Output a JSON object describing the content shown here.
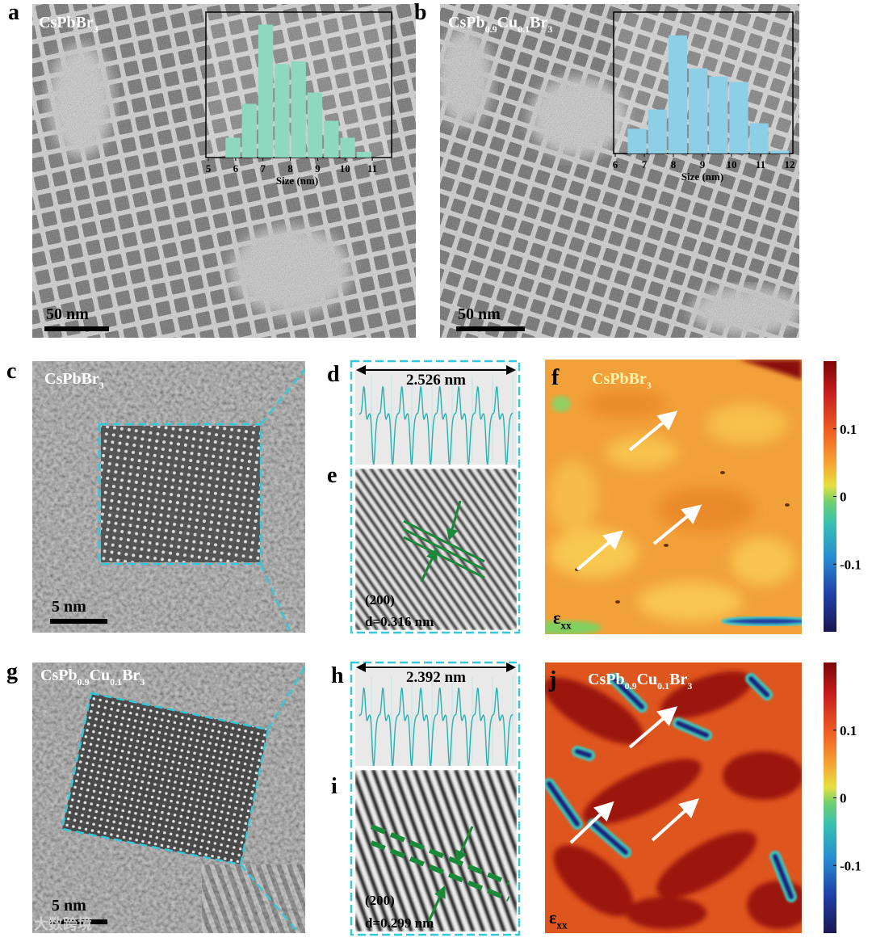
{
  "panels": {
    "a": {
      "label": "a",
      "name": [
        {
          "text": "CsPbBr"
        },
        {
          "text": "3",
          "sub": true
        }
      ],
      "scale_bar": "50 nm",
      "histogram": {
        "type": "bar",
        "bins": [
          5.6,
          6.2,
          6.8,
          7.4,
          8.0,
          8.6,
          9.2,
          9.8,
          10.4,
          11.0
        ],
        "values": [
          7,
          19,
          47,
          33,
          34,
          23,
          13,
          7,
          2
        ],
        "color": "#8ed8bf",
        "xlim": [
          5,
          11.5
        ],
        "ylim": [
          0,
          50
        ],
        "xticks": [
          5,
          6,
          7,
          8,
          9,
          10,
          11
        ],
        "xlabel": "Size (nm)"
      }
    },
    "b": {
      "label": "b",
      "name": [
        {
          "text": "CsPb"
        },
        {
          "text": "0.9",
          "sub": true
        },
        {
          "text": "Cu"
        },
        {
          "text": "0.1",
          "sub": true
        },
        {
          "text": "Br"
        },
        {
          "text": "3",
          "sub": true
        }
      ],
      "scale_bar": "50 nm",
      "histogram": {
        "type": "bar",
        "bins": [
          6.4,
          7.1,
          7.8,
          8.5,
          9.2,
          9.9,
          10.6,
          11.3,
          12.0
        ],
        "values": [
          9,
          16,
          43,
          31,
          28,
          26,
          11,
          1
        ],
        "color": "#8ccfe6",
        "xlim": [
          6,
          12
        ],
        "ylim": [
          0,
          50
        ],
        "xticks": [
          6,
          7,
          8,
          9,
          10,
          11,
          12
        ],
        "xlabel": "Size (nm)"
      }
    },
    "c": {
      "label": "c",
      "name": [
        {
          "text": "CsPbBr"
        },
        {
          "text": "3",
          "sub": true
        }
      ],
      "scale_bar": "5 nm"
    },
    "d": {
      "label": "d",
      "distance": "2.526 nm"
    },
    "e": {
      "label": "e",
      "plane": "(200)",
      "spacing": "d=0.316 nm"
    },
    "f": {
      "label": "f",
      "name": [
        {
          "text": "CsPbBr"
        },
        {
          "text": "3",
          "sub": true
        }
      ],
      "symbol": [
        {
          "text": "ε"
        },
        {
          "text": "xx",
          "sub": true
        }
      ],
      "colorbar": {
        "ylim": [
          -0.2,
          0.2
        ],
        "yticks": [
          0.1,
          0,
          -0.1
        ]
      }
    },
    "g": {
      "label": "g",
      "name": [
        {
          "text": "CsPb"
        },
        {
          "text": "0.9",
          "sub": true
        },
        {
          "text": "Cu"
        },
        {
          "text": "0.1",
          "sub": true
        },
        {
          "text": "Br"
        },
        {
          "text": "3",
          "sub": true
        }
      ],
      "scale_bar": "5 nm"
    },
    "h": {
      "label": "h",
      "distance": "2.392 nm"
    },
    "i": {
      "label": "i",
      "plane": "(200)",
      "spacing": "d=0.299 nm"
    },
    "j": {
      "label": "j",
      "name": [
        {
          "text": "CsPb"
        },
        {
          "text": "0.9",
          "sub": true
        },
        {
          "text": "Cu"
        },
        {
          "text": "0.1",
          "sub": true
        },
        {
          "text": "Br"
        },
        {
          "text": "3",
          "sub": true
        }
      ],
      "symbol": [
        {
          "text": "ε"
        },
        {
          "text": "xx",
          "sub": true
        }
      ],
      "colorbar": {
        "ylim": [
          -0.2,
          0.2
        ],
        "yticks": [
          0.1,
          0,
          -0.1
        ]
      }
    }
  },
  "watermark": "大数跨境"
}
